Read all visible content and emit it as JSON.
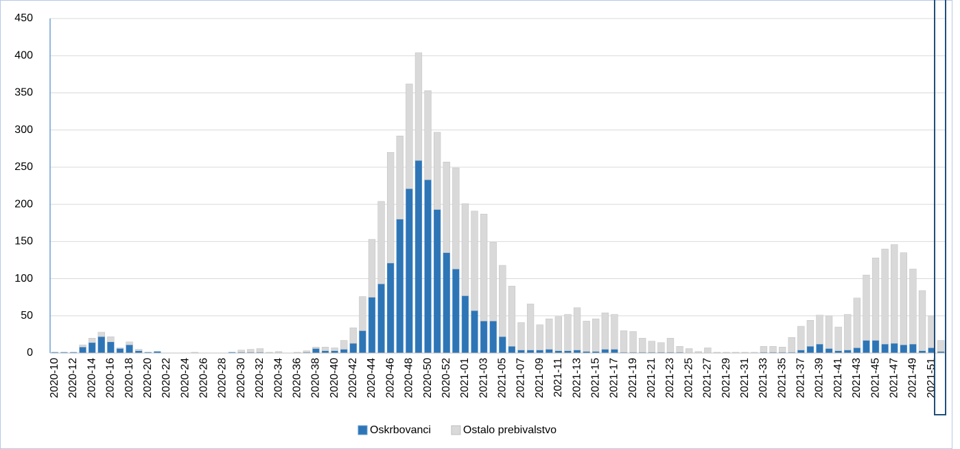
{
  "chart_data": {
    "type": "stacked-bar",
    "categories": [
      "2020-10",
      null,
      "2020-12",
      null,
      "2020-14",
      null,
      "2020-16",
      null,
      "2020-18",
      null,
      "2020-20",
      null,
      "2020-22",
      null,
      "2020-24",
      null,
      "2020-26",
      null,
      "2020-28",
      null,
      "2020-30",
      null,
      "2020-32",
      null,
      "2020-34",
      null,
      "2020-36",
      null,
      "2020-38",
      null,
      "2020-40",
      null,
      "2020-42",
      null,
      "2020-44",
      null,
      "2020-46",
      null,
      "2020-48",
      null,
      "2020-50",
      null,
      "2020-52",
      null,
      "2021-01",
      null,
      "2021-03",
      null,
      "2021-05",
      null,
      "2021-07",
      null,
      "2021-09",
      null,
      "2021-11",
      null,
      "2021-13",
      null,
      "2021-15",
      null,
      "2021-17",
      null,
      "2021-19",
      null,
      "2021-21",
      null,
      "2021-23",
      null,
      "2021-25",
      null,
      "2021-27",
      null,
      "2021-29",
      null,
      "2021-31",
      null,
      "2021-33",
      null,
      "2021-35",
      null,
      "2021-37",
      null,
      "2021-39",
      null,
      "2021-41",
      null,
      "2021-43",
      null,
      "2021-45",
      null,
      "2021-47",
      null,
      "2021-49",
      null,
      "2021-51",
      null
    ],
    "series": [
      {
        "name": "Oskrbovanci",
        "color": "#2e75b6",
        "values": [
          1,
          1,
          1,
          8,
          14,
          22,
          15,
          6,
          11,
          3,
          1,
          2,
          0,
          0,
          0,
          0,
          0,
          0,
          0,
          1,
          1,
          1,
          1,
          0,
          0,
          0,
          0,
          1,
          6,
          3,
          3,
          5,
          13,
          30,
          75,
          93,
          121,
          180,
          221,
          259,
          233,
          193,
          135,
          113,
          77,
          57,
          43,
          43,
          22,
          9,
          4,
          4,
          4,
          5,
          3,
          3,
          4,
          2,
          2,
          5,
          5,
          1,
          1,
          1,
          1,
          1,
          1,
          1,
          0,
          0,
          0,
          0,
          0,
          0,
          0,
          0,
          1,
          1,
          1,
          1,
          4,
          9,
          12,
          6,
          3,
          4,
          7,
          17,
          17,
          12,
          13,
          11,
          12,
          3,
          7,
          2
        ]
      },
      {
        "name": "Ostalo prebivalstvo",
        "color": "#d9d9d9",
        "values": [
          0,
          0,
          0,
          3,
          6,
          6,
          7,
          1,
          4,
          2,
          0,
          0,
          0,
          0,
          0,
          1,
          0,
          0,
          0,
          0,
          3,
          4,
          5,
          1,
          2,
          0,
          1,
          2,
          2,
          5,
          4,
          12,
          21,
          46,
          78,
          111,
          149,
          112,
          141,
          145,
          120,
          104,
          122,
          136,
          124,
          134,
          144,
          106,
          96,
          81,
          37,
          62,
          34,
          41,
          46,
          49,
          57,
          41,
          44,
          49,
          47,
          29,
          28,
          19,
          15,
          13,
          19,
          8,
          6,
          2,
          7,
          1,
          1,
          1,
          1,
          1,
          8,
          8,
          7,
          20,
          32,
          35,
          39,
          44,
          32,
          48,
          67,
          88,
          111,
          128,
          133,
          124,
          101,
          81,
          43,
          15
        ]
      }
    ],
    "ylim": [
      0,
      450
    ],
    "yticks": [
      0,
      50,
      100,
      150,
      200,
      250,
      300,
      350,
      400,
      450
    ],
    "grid": true,
    "legend": "bottom"
  }
}
